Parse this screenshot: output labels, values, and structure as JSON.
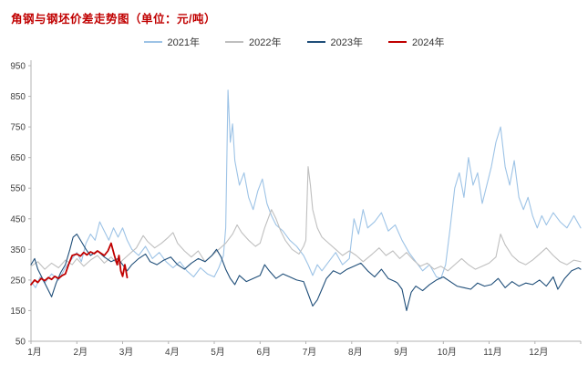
{
  "chart_data": {
    "type": "line",
    "title": "角钢与钢坯价差走势图（单位：元/吨）",
    "xlabel": "",
    "ylabel": "",
    "xlim": [
      1,
      13
    ],
    "ylim": [
      50,
      950
    ],
    "yticks": [
      50,
      150,
      250,
      350,
      450,
      550,
      650,
      750,
      850,
      950
    ],
    "xticks": [
      "1月",
      "2月",
      "3月",
      "4月",
      "5月",
      "6月",
      "7月",
      "8月",
      "9月",
      "10月",
      "11月",
      "12月"
    ],
    "grid": false,
    "legend_position": "top",
    "series": [
      {
        "name": "2021年",
        "color": "#9dc3e6",
        "width": 1.1,
        "points": [
          [
            1.0,
            245
          ],
          [
            1.1,
            225
          ],
          [
            1.2,
            260
          ],
          [
            1.3,
            240
          ],
          [
            1.45,
            270
          ],
          [
            1.6,
            250
          ],
          [
            1.75,
            290
          ],
          [
            1.9,
            320
          ],
          [
            2.0,
            340
          ],
          [
            2.1,
            310
          ],
          [
            2.2,
            370
          ],
          [
            2.3,
            400
          ],
          [
            2.4,
            380
          ],
          [
            2.5,
            440
          ],
          [
            2.6,
            410
          ],
          [
            2.7,
            380
          ],
          [
            2.8,
            420
          ],
          [
            2.9,
            390
          ],
          [
            3.0,
            420
          ],
          [
            3.1,
            380
          ],
          [
            3.2,
            350
          ],
          [
            3.35,
            330
          ],
          [
            3.5,
            360
          ],
          [
            3.65,
            320
          ],
          [
            3.8,
            340
          ],
          [
            3.95,
            310
          ],
          [
            4.1,
            290
          ],
          [
            4.25,
            310
          ],
          [
            4.4,
            280
          ],
          [
            4.55,
            260
          ],
          [
            4.7,
            290
          ],
          [
            4.85,
            270
          ],
          [
            5.0,
            260
          ],
          [
            5.1,
            290
          ],
          [
            5.2,
            330
          ],
          [
            5.25,
            420
          ],
          [
            5.3,
            870
          ],
          [
            5.35,
            700
          ],
          [
            5.4,
            760
          ],
          [
            5.45,
            640
          ],
          [
            5.55,
            560
          ],
          [
            5.65,
            600
          ],
          [
            5.75,
            520
          ],
          [
            5.85,
            480
          ],
          [
            5.95,
            540
          ],
          [
            6.05,
            580
          ],
          [
            6.15,
            500
          ],
          [
            6.25,
            460
          ],
          [
            6.35,
            430
          ],
          [
            6.5,
            410
          ],
          [
            6.65,
            380
          ],
          [
            6.8,
            360
          ],
          [
            6.95,
            330
          ],
          [
            7.05,
            300
          ],
          [
            7.15,
            265
          ],
          [
            7.25,
            300
          ],
          [
            7.35,
            280
          ],
          [
            7.5,
            310
          ],
          [
            7.65,
            340
          ],
          [
            7.8,
            300
          ],
          [
            7.95,
            320
          ],
          [
            8.05,
            450
          ],
          [
            8.15,
            400
          ],
          [
            8.25,
            480
          ],
          [
            8.35,
            420
          ],
          [
            8.5,
            440
          ],
          [
            8.65,
            470
          ],
          [
            8.8,
            410
          ],
          [
            8.95,
            430
          ],
          [
            9.1,
            380
          ],
          [
            9.25,
            340
          ],
          [
            9.4,
            310
          ],
          [
            9.55,
            280
          ],
          [
            9.7,
            300
          ],
          [
            9.85,
            260
          ],
          [
            9.95,
            255
          ],
          [
            10.05,
            300
          ],
          [
            10.15,
            420
          ],
          [
            10.25,
            550
          ],
          [
            10.35,
            600
          ],
          [
            10.45,
            520
          ],
          [
            10.55,
            650
          ],
          [
            10.65,
            560
          ],
          [
            10.75,
            600
          ],
          [
            10.85,
            500
          ],
          [
            10.95,
            560
          ],
          [
            11.05,
            620
          ],
          [
            11.15,
            700
          ],
          [
            11.25,
            750
          ],
          [
            11.35,
            620
          ],
          [
            11.45,
            560
          ],
          [
            11.55,
            640
          ],
          [
            11.65,
            520
          ],
          [
            11.75,
            480
          ],
          [
            11.85,
            520
          ],
          [
            11.95,
            460
          ],
          [
            12.05,
            420
          ],
          [
            12.15,
            460
          ],
          [
            12.25,
            430
          ],
          [
            12.4,
            470
          ],
          [
            12.55,
            440
          ],
          [
            12.7,
            420
          ],
          [
            12.85,
            460
          ],
          [
            13.0,
            420
          ]
        ]
      },
      {
        "name": "2022年",
        "color": "#bfbfbf",
        "width": 1.1,
        "points": [
          [
            1.0,
            295
          ],
          [
            1.15,
            310
          ],
          [
            1.3,
            285
          ],
          [
            1.45,
            305
          ],
          [
            1.6,
            290
          ],
          [
            1.75,
            315
          ],
          [
            1.9,
            300
          ],
          [
            2.0,
            320
          ],
          [
            2.15,
            295
          ],
          [
            2.3,
            315
          ],
          [
            2.45,
            330
          ],
          [
            2.6,
            305
          ],
          [
            2.75,
            325
          ],
          [
            2.9,
            300
          ],
          [
            3.0,
            315
          ],
          [
            3.15,
            335
          ],
          [
            3.3,
            355
          ],
          [
            3.45,
            395
          ],
          [
            3.55,
            375
          ],
          [
            3.7,
            355
          ],
          [
            3.85,
            370
          ],
          [
            4.0,
            390
          ],
          [
            4.1,
            405
          ],
          [
            4.2,
            370
          ],
          [
            4.35,
            345
          ],
          [
            4.5,
            325
          ],
          [
            4.65,
            345
          ],
          [
            4.8,
            310
          ],
          [
            4.95,
            330
          ],
          [
            5.1,
            350
          ],
          [
            5.25,
            370
          ],
          [
            5.4,
            400
          ],
          [
            5.5,
            430
          ],
          [
            5.6,
            405
          ],
          [
            5.75,
            380
          ],
          [
            5.9,
            360
          ],
          [
            6.0,
            370
          ],
          [
            6.1,
            420
          ],
          [
            6.25,
            480
          ],
          [
            6.35,
            450
          ],
          [
            6.45,
            410
          ],
          [
            6.55,
            380
          ],
          [
            6.7,
            350
          ],
          [
            6.85,
            335
          ],
          [
            6.95,
            360
          ],
          [
            7.0,
            380
          ],
          [
            7.05,
            620
          ],
          [
            7.1,
            560
          ],
          [
            7.15,
            480
          ],
          [
            7.25,
            420
          ],
          [
            7.35,
            390
          ],
          [
            7.5,
            370
          ],
          [
            7.65,
            350
          ],
          [
            7.8,
            330
          ],
          [
            7.95,
            345
          ],
          [
            8.1,
            330
          ],
          [
            8.25,
            310
          ],
          [
            8.45,
            335
          ],
          [
            8.6,
            355
          ],
          [
            8.75,
            330
          ],
          [
            8.9,
            345
          ],
          [
            9.05,
            320
          ],
          [
            9.2,
            340
          ],
          [
            9.35,
            315
          ],
          [
            9.5,
            295
          ],
          [
            9.65,
            305
          ],
          [
            9.8,
            285
          ],
          [
            9.95,
            295
          ],
          [
            10.1,
            280
          ],
          [
            10.25,
            300
          ],
          [
            10.4,
            320
          ],
          [
            10.55,
            300
          ],
          [
            10.7,
            285
          ],
          [
            10.85,
            295
          ],
          [
            11.0,
            305
          ],
          [
            11.15,
            325
          ],
          [
            11.25,
            400
          ],
          [
            11.35,
            365
          ],
          [
            11.5,
            330
          ],
          [
            11.65,
            310
          ],
          [
            11.8,
            300
          ],
          [
            11.95,
            315
          ],
          [
            12.1,
            335
          ],
          [
            12.25,
            355
          ],
          [
            12.4,
            330
          ],
          [
            12.55,
            310
          ],
          [
            12.7,
            300
          ],
          [
            12.85,
            315
          ],
          [
            13.0,
            310
          ]
        ]
      },
      {
        "name": "2023年",
        "color": "#1f4e79",
        "width": 1.1,
        "points": [
          [
            1.0,
            300
          ],
          [
            1.08,
            320
          ],
          [
            1.15,
            285
          ],
          [
            1.25,
            255
          ],
          [
            1.35,
            225
          ],
          [
            1.45,
            195
          ],
          [
            1.55,
            240
          ],
          [
            1.65,
            275
          ],
          [
            1.75,
            300
          ],
          [
            1.85,
            350
          ],
          [
            1.92,
            390
          ],
          [
            2.0,
            400
          ],
          [
            2.1,
            375
          ],
          [
            2.2,
            350
          ],
          [
            2.3,
            330
          ],
          [
            2.45,
            345
          ],
          [
            2.6,
            325
          ],
          [
            2.75,
            310
          ],
          [
            2.9,
            320
          ],
          [
            3.0,
            300
          ],
          [
            3.1,
            280
          ],
          [
            3.2,
            300
          ],
          [
            3.35,
            320
          ],
          [
            3.5,
            335
          ],
          [
            3.6,
            310
          ],
          [
            3.75,
            300
          ],
          [
            3.9,
            315
          ],
          [
            4.05,
            325
          ],
          [
            4.2,
            300
          ],
          [
            4.35,
            285
          ],
          [
            4.5,
            305
          ],
          [
            4.65,
            320
          ],
          [
            4.8,
            310
          ],
          [
            4.95,
            330
          ],
          [
            5.05,
            350
          ],
          [
            5.15,
            325
          ],
          [
            5.25,
            285
          ],
          [
            5.35,
            255
          ],
          [
            5.45,
            235
          ],
          [
            5.55,
            265
          ],
          [
            5.7,
            245
          ],
          [
            5.85,
            255
          ],
          [
            6.0,
            265
          ],
          [
            6.1,
            300
          ],
          [
            6.2,
            280
          ],
          [
            6.35,
            255
          ],
          [
            6.5,
            270
          ],
          [
            6.65,
            260
          ],
          [
            6.8,
            250
          ],
          [
            6.95,
            245
          ],
          [
            7.05,
            205
          ],
          [
            7.15,
            165
          ],
          [
            7.25,
            185
          ],
          [
            7.35,
            220
          ],
          [
            7.45,
            255
          ],
          [
            7.6,
            280
          ],
          [
            7.75,
            270
          ],
          [
            7.9,
            285
          ],
          [
            8.05,
            295
          ],
          [
            8.2,
            305
          ],
          [
            8.35,
            280
          ],
          [
            8.5,
            260
          ],
          [
            8.65,
            285
          ],
          [
            8.8,
            255
          ],
          [
            8.95,
            245
          ],
          [
            9.0,
            240
          ],
          [
            9.1,
            220
          ],
          [
            9.2,
            150
          ],
          [
            9.3,
            210
          ],
          [
            9.4,
            230
          ],
          [
            9.55,
            215
          ],
          [
            9.7,
            235
          ],
          [
            9.85,
            250
          ],
          [
            10.0,
            260
          ],
          [
            10.15,
            245
          ],
          [
            10.3,
            230
          ],
          [
            10.45,
            225
          ],
          [
            10.6,
            220
          ],
          [
            10.75,
            240
          ],
          [
            10.9,
            230
          ],
          [
            11.05,
            235
          ],
          [
            11.2,
            255
          ],
          [
            11.35,
            225
          ],
          [
            11.5,
            245
          ],
          [
            11.65,
            230
          ],
          [
            11.8,
            240
          ],
          [
            11.95,
            235
          ],
          [
            12.1,
            250
          ],
          [
            12.25,
            230
          ],
          [
            12.4,
            260
          ],
          [
            12.5,
            220
          ],
          [
            12.65,
            255
          ],
          [
            12.8,
            280
          ],
          [
            12.95,
            290
          ],
          [
            13.0,
            285
          ]
        ]
      },
      {
        "name": "2024年",
        "color": "#c00000",
        "width": 1.8,
        "points": [
          [
            1.0,
            235
          ],
          [
            1.08,
            250
          ],
          [
            1.15,
            242
          ],
          [
            1.22,
            255
          ],
          [
            1.3,
            248
          ],
          [
            1.38,
            258
          ],
          [
            1.45,
            252
          ],
          [
            1.52,
            262
          ],
          [
            1.6,
            255
          ],
          [
            1.68,
            265
          ],
          [
            1.75,
            270
          ],
          [
            1.82,
            300
          ],
          [
            1.9,
            330
          ],
          [
            2.0,
            335
          ],
          [
            2.08,
            328
          ],
          [
            2.15,
            340
          ],
          [
            2.22,
            332
          ],
          [
            2.3,
            342
          ],
          [
            2.38,
            336
          ],
          [
            2.45,
            345
          ],
          [
            2.52,
            338
          ],
          [
            2.6,
            330
          ],
          [
            2.68,
            345
          ],
          [
            2.75,
            370
          ],
          [
            2.82,
            330
          ],
          [
            2.88,
            300
          ],
          [
            2.92,
            330
          ],
          [
            2.96,
            280
          ],
          [
            3.0,
            262
          ],
          [
            3.05,
            300
          ],
          [
            3.1,
            258
          ]
        ]
      }
    ]
  }
}
